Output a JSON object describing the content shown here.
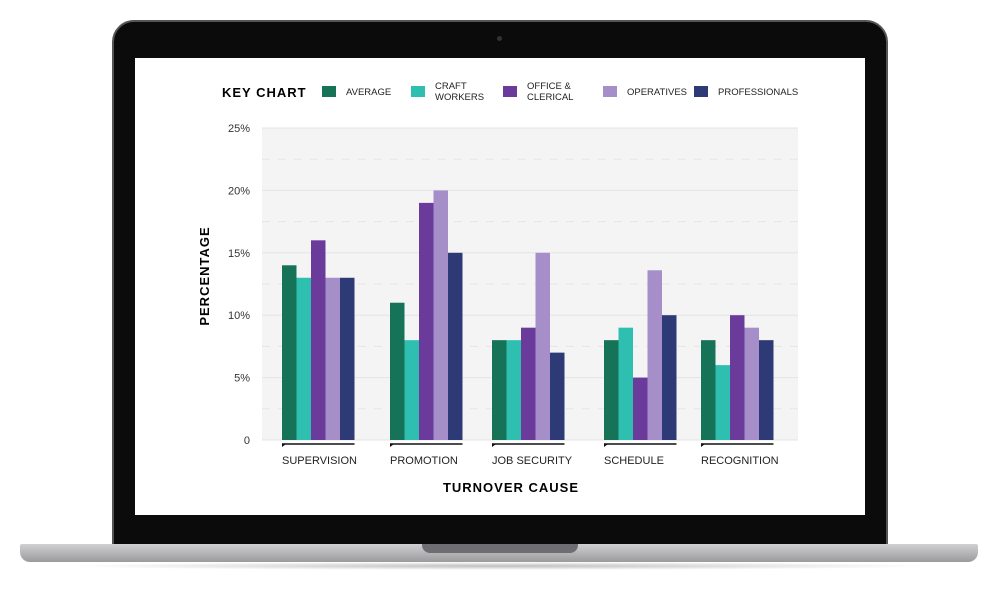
{
  "chart_data": {
    "type": "bar",
    "legend_title": "KEY CHART",
    "legend_placement": "top",
    "xlabel": "TURNOVER CAUSE",
    "ylabel": "PERCENTAGE",
    "ylim": [
      0,
      25
    ],
    "yticks": [
      0,
      5,
      10,
      15,
      20,
      25
    ],
    "ytick_labels": [
      "0",
      "5%",
      "10%",
      "15%",
      "20%",
      "25%"
    ],
    "grid": true,
    "categories": [
      "SUPERVISION",
      "PROMOTION",
      "JOB SECURITY",
      "SCHEDULE",
      "RECOGNITION"
    ],
    "series": [
      {
        "name": "AVERAGE",
        "name_lines": [
          "AVERAGE"
        ],
        "color": "#177358",
        "values": [
          14,
          11,
          8,
          8,
          8
        ]
      },
      {
        "name": "CRAFT WORKERS",
        "name_lines": [
          "CRAFT",
          "WORKERS"
        ],
        "color": "#2fbfb1",
        "values": [
          13,
          8,
          8,
          9,
          6
        ]
      },
      {
        "name": "OFFICE & CLERICAL",
        "name_lines": [
          "OFFICE &",
          "CLERICAL"
        ],
        "color": "#6a3b9b",
        "values": [
          16,
          19,
          9,
          5,
          10
        ]
      },
      {
        "name": "OPERATIVES",
        "name_lines": [
          "OPERATIVES"
        ],
        "color": "#a68fc9",
        "values": [
          13,
          20,
          15,
          13.6,
          9
        ]
      },
      {
        "name": "PROFESSIONALS",
        "name_lines": [
          "PROFESSIONALS"
        ],
        "color": "#2e3a76",
        "values": [
          13,
          15,
          7,
          10,
          8
        ]
      }
    ]
  }
}
